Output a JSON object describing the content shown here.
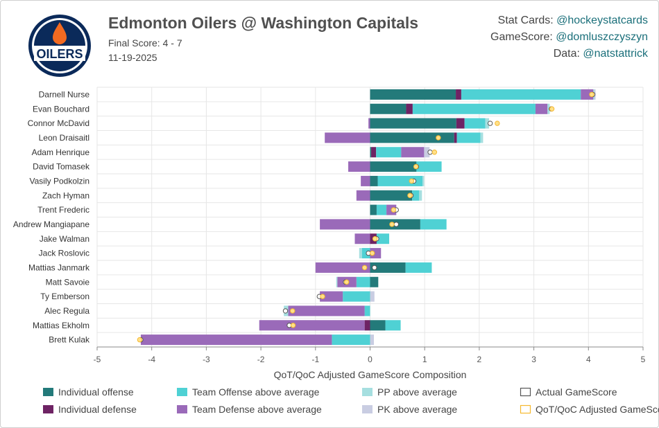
{
  "header": {
    "title": "Edmonton Oilers @ Washington Capitals",
    "final_score": "Final Score: 4 - 7",
    "date": "11-19-2025",
    "logo_text": "OILERS"
  },
  "credits": [
    {
      "label": "Stat Cards: ",
      "handle": "@hockeystatcards"
    },
    {
      "label": "GameScore: ",
      "handle": "@domluszczyszyn"
    },
    {
      "label": "Data: ",
      "handle": "@natstattrick"
    }
  ],
  "colors": {
    "ind_off": "#237a7a",
    "ind_def": "#6e2364",
    "team_off": "#4fd1d4",
    "team_def": "#9a6ab9",
    "pp": "#a6dfe0",
    "pk": "#c9cde2",
    "gamescore_marker": "#555555",
    "adj_marker": "#f5b82e"
  },
  "chart_data": {
    "type": "bar",
    "orientation": "horizontal",
    "stacked": true,
    "xlabel": "QoT/QoC Adjusted GameScore Composition",
    "xlim": [
      -5,
      5
    ],
    "xticks": [
      -5,
      -4,
      -3,
      -2,
      -1,
      0,
      1,
      2,
      3,
      4,
      5
    ],
    "grid": true,
    "legend_position": "bottom",
    "categories": [
      "Darnell Nurse",
      "Evan Bouchard",
      "Connor McDavid",
      "Leon Draisaitl",
      "Adam Henrique",
      "David Tomasek",
      "Vasily Podkolzin",
      "Zach Hyman",
      "Trent Frederic",
      "Andrew Mangiapane",
      "Jake Walman",
      "Jack Roslovic",
      "Mattias Janmark",
      "Matt Savoie",
      "Ty Emberson",
      "Alec Regula",
      "Mattias Ekholm",
      "Brett Kulak"
    ],
    "series": [
      {
        "key": "ind_off",
        "name": "Individual offense",
        "values": [
          1.57,
          0.66,
          1.58,
          1.54,
          0.02,
          0.85,
          0.14,
          0.77,
          0.12,
          0.92,
          0.0,
          0.0,
          0.65,
          0.15,
          0.0,
          0.0,
          0.28,
          0.0
        ]
      },
      {
        "key": "ind_def",
        "name": "Individual defense",
        "values": [
          0.1,
          0.12,
          0.15,
          0.05,
          0.09,
          0.0,
          0.0,
          0.0,
          0.0,
          0.0,
          0.12,
          0.0,
          0.0,
          0.0,
          0.0,
          0.0,
          -0.1,
          0.0
        ]
      },
      {
        "key": "team_off",
        "name": "Team Offense above average",
        "values": [
          2.19,
          2.25,
          0.38,
          0.43,
          0.46,
          0.46,
          0.82,
          0.13,
          0.18,
          0.48,
          0.23,
          -0.15,
          0.48,
          -0.25,
          -0.5,
          -0.1,
          0.28,
          -0.7
        ]
      },
      {
        "key": "team_def",
        "name": "Team Defense above average",
        "values": [
          0.23,
          0.22,
          -0.03,
          -0.83,
          0.42,
          -0.4,
          -0.17,
          -0.25,
          0.18,
          -0.92,
          -0.28,
          0.2,
          -1.0,
          -0.35,
          -0.42,
          -1.4,
          -1.93,
          -3.5
        ]
      },
      {
        "key": "pp",
        "name": "PP above average",
        "values": [
          0.02,
          0.04,
          0.07,
          0.05,
          0.0,
          0.0,
          0.03,
          0.05,
          0.0,
          0.0,
          0.0,
          -0.05,
          0.0,
          -0.02,
          0.0,
          -0.08,
          0.0,
          0.0
        ]
      },
      {
        "key": "pk",
        "name": "PK above average",
        "values": [
          0.02,
          0.0,
          0.0,
          0.0,
          0.1,
          0.0,
          0.0,
          0.0,
          0.0,
          0.0,
          0.0,
          0.0,
          0.0,
          0.0,
          0.08,
          0.0,
          0.0,
          0.07
        ]
      }
    ],
    "actual_gamescore": [
      4.08,
      3.32,
      2.2,
      1.25,
      1.1,
      0.85,
      0.8,
      0.75,
      0.48,
      0.48,
      0.12,
      -0.03,
      0.08,
      -0.45,
      -0.93,
      -1.55,
      -1.48,
      -4.2
    ],
    "adjusted_gamescore": [
      4.06,
      3.33,
      2.33,
      1.25,
      1.18,
      0.84,
      0.76,
      0.73,
      0.43,
      0.4,
      0.09,
      0.04,
      -0.1,
      -0.43,
      -0.87,
      -1.42,
      -1.41,
      -4.22
    ],
    "legend": [
      {
        "key": "ind_off",
        "label": "Individual offense",
        "kind": "swatch"
      },
      {
        "key": "team_off",
        "label": "Team Offense above average",
        "kind": "swatch"
      },
      {
        "key": "pp",
        "label": "PP above average",
        "kind": "swatch"
      },
      {
        "key": "gamescore_marker",
        "label": "Actual GameScore",
        "kind": "outline"
      },
      {
        "key": "ind_def",
        "label": "Individual defense",
        "kind": "swatch"
      },
      {
        "key": "team_def",
        "label": "Team Defense above average",
        "kind": "swatch"
      },
      {
        "key": "pk",
        "label": "PK above average",
        "kind": "swatch"
      },
      {
        "key": "adj_marker",
        "label": "QoT/QoC Adjusted GameScore",
        "kind": "outline"
      }
    ]
  }
}
